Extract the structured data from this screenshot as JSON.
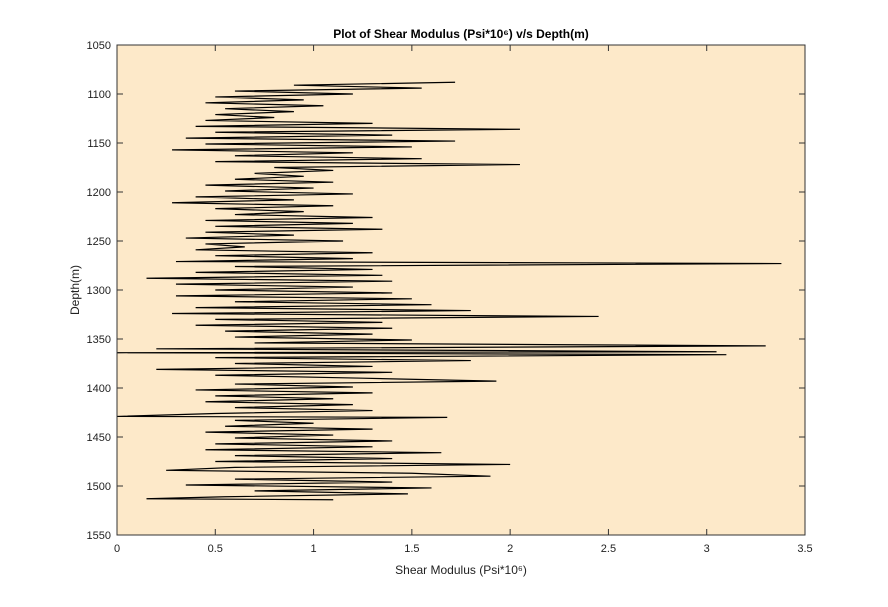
{
  "chart_data": {
    "type": "line",
    "title": "Plot of Shear Modulus (Psi*10⁶) v/s Depth(m)",
    "x_label": "Shear Modulus (Psi*10⁶)",
    "y_label": "Depth(m)",
    "xlim": [
      0,
      3.5
    ],
    "xticks": [
      0,
      0.5,
      1,
      1.5,
      2,
      2.5,
      3,
      3.5
    ],
    "ylim": [
      1050,
      1550
    ],
    "yticks": [
      1050,
      1100,
      1150,
      1200,
      1250,
      1300,
      1350,
      1400,
      1450,
      1500,
      1550
    ],
    "y_reversed": true,
    "color": "#000000",
    "background": "#fde9c9",
    "y": [
      1088,
      1091,
      1094,
      1097,
      1100,
      1103,
      1106,
      1109,
      1112,
      1115,
      1118,
      1121,
      1124,
      1127,
      1130,
      1133,
      1136,
      1139,
      1142,
      1145,
      1148,
      1151,
      1154,
      1157,
      1160,
      1163,
      1166,
      1169,
      1172,
      1175,
      1178,
      1181,
      1184,
      1187,
      1190,
      1193,
      1196,
      1199,
      1202,
      1205,
      1208,
      1211,
      1214,
      1217,
      1220,
      1223,
      1226,
      1229,
      1232,
      1235,
      1238,
      1241,
      1244,
      1247,
      1250,
      1253,
      1256,
      1259,
      1262,
      1265,
      1268,
      1271,
      1273,
      1276,
      1279,
      1282,
      1285,
      1288,
      1291,
      1294,
      1297,
      1300,
      1303,
      1306,
      1309,
      1312,
      1315,
      1318,
      1321,
      1324,
      1327,
      1330,
      1333,
      1336,
      1339,
      1342,
      1345,
      1348,
      1351,
      1354,
      1357,
      1360,
      1363,
      1364,
      1366,
      1369,
      1372,
      1375,
      1378,
      1381,
      1384,
      1387,
      1390,
      1393,
      1396,
      1399,
      1402,
      1405,
      1408,
      1411,
      1414,
      1417,
      1420,
      1423,
      1426,
      1429,
      1430,
      1433,
      1436,
      1439,
      1442,
      1445,
      1448,
      1451,
      1454,
      1457,
      1460,
      1463,
      1466,
      1469,
      1472,
      1475,
      1478,
      1481,
      1484,
      1487,
      1490,
      1493,
      1496,
      1499,
      1502,
      1505,
      1508,
      1511,
      1513,
      1514
    ],
    "x": [
      1.72,
      0.9,
      1.55,
      0.6,
      1.2,
      0.5,
      0.95,
      0.45,
      1.05,
      0.55,
      0.9,
      0.5,
      0.8,
      0.45,
      1.3,
      0.4,
      2.05,
      0.5,
      1.4,
      0.35,
      1.72,
      0.45,
      1.5,
      0.28,
      1.2,
      0.6,
      1.55,
      0.5,
      2.05,
      0.8,
      1.1,
      0.7,
      0.95,
      0.6,
      1.1,
      0.45,
      1.0,
      0.55,
      1.2,
      0.4,
      0.9,
      0.28,
      1.1,
      0.5,
      0.95,
      0.6,
      1.3,
      0.45,
      1.2,
      0.5,
      1.35,
      0.45,
      0.9,
      0.35,
      1.15,
      0.45,
      0.65,
      0.4,
      1.3,
      0.5,
      1.2,
      0.3,
      3.38,
      0.6,
      1.3,
      0.4,
      1.35,
      0.15,
      1.4,
      0.3,
      1.2,
      0.5,
      1.4,
      0.3,
      1.5,
      0.6,
      1.6,
      0.4,
      1.8,
      0.28,
      2.45,
      0.5,
      1.35,
      0.4,
      1.4,
      0.55,
      1.3,
      0.6,
      1.5,
      0.7,
      3.3,
      0.2,
      3.05,
      0.0,
      3.1,
      0.5,
      1.8,
      0.6,
      1.3,
      0.2,
      1.4,
      0.5,
      1.25,
      1.93,
      0.6,
      1.2,
      0.4,
      1.3,
      0.5,
      1.1,
      0.45,
      1.2,
      0.6,
      1.3,
      0.5,
      0.0,
      1.68,
      0.6,
      1.0,
      0.55,
      1.3,
      0.45,
      1.1,
      0.6,
      1.4,
      0.5,
      1.3,
      0.45,
      1.65,
      0.6,
      1.4,
      0.5,
      2.0,
      0.6,
      0.25,
      1.5,
      1.9,
      0.6,
      1.4,
      0.35,
      1.6,
      0.7,
      1.48,
      0.55,
      0.15,
      1.1
    ]
  }
}
